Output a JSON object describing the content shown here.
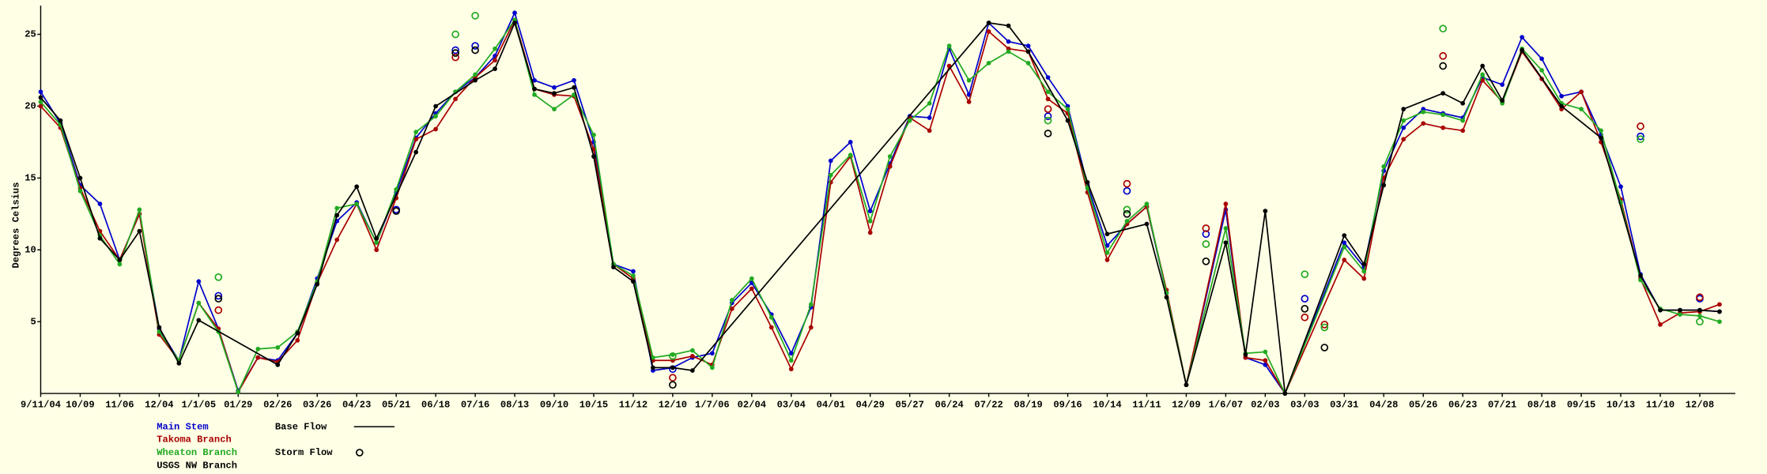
{
  "chart_data": {
    "type": "line",
    "y_label": "Degrees Celsius",
    "xlim": [
      0,
      85.8
    ],
    "ylim": [
      0,
      27
    ],
    "yticks": [
      5,
      10,
      15,
      20,
      25
    ],
    "xticks": [
      {
        "value": 0,
        "label": "9/11/04"
      },
      {
        "value": 2,
        "label": "10/09"
      },
      {
        "value": 4,
        "label": "11/06"
      },
      {
        "value": 6,
        "label": "12/04"
      },
      {
        "value": 8,
        "label": "1/1/05"
      },
      {
        "value": 10,
        "label": "01/29"
      },
      {
        "value": 12,
        "label": "02/26"
      },
      {
        "value": 14,
        "label": "03/26"
      },
      {
        "value": 16,
        "label": "04/23"
      },
      {
        "value": 18,
        "label": "05/21"
      },
      {
        "value": 20,
        "label": "06/18"
      },
      {
        "value": 22,
        "label": "07/16"
      },
      {
        "value": 24,
        "label": "08/13"
      },
      {
        "value": 26,
        "label": "09/10"
      },
      {
        "value": 28,
        "label": "10/15"
      },
      {
        "value": 30,
        "label": "11/12"
      },
      {
        "value": 32,
        "label": "12/10"
      },
      {
        "value": 34,
        "label": "1/7/06"
      },
      {
        "value": 36,
        "label": "02/04"
      },
      {
        "value": 38,
        "label": "03/04"
      },
      {
        "value": 40,
        "label": "04/01"
      },
      {
        "value": 42,
        "label": "04/29"
      },
      {
        "value": 44,
        "label": "05/27"
      },
      {
        "value": 46,
        "label": "06/24"
      },
      {
        "value": 48,
        "label": "07/22"
      },
      {
        "value": 50,
        "label": "08/19"
      },
      {
        "value": 52,
        "label": "09/16"
      },
      {
        "value": 54,
        "label": "10/14"
      },
      {
        "value": 56,
        "label": "11/11"
      },
      {
        "value": 58,
        "label": "12/09"
      },
      {
        "value": 60,
        "label": "1/6/07"
      },
      {
        "value": 62,
        "label": "02/03"
      },
      {
        "value": 64,
        "label": "03/03"
      },
      {
        "value": 66,
        "label": "03/31"
      },
      {
        "value": 68,
        "label": "04/28"
      },
      {
        "value": 70,
        "label": "05/26"
      },
      {
        "value": 72,
        "label": "06/23"
      },
      {
        "value": 74,
        "label": "07/21"
      },
      {
        "value": 76,
        "label": "08/18"
      },
      {
        "value": 78,
        "label": "09/15"
      },
      {
        "value": 80,
        "label": "10/13"
      },
      {
        "value": 82,
        "label": "11/10"
      },
      {
        "value": 84,
        "label": "12/08"
      }
    ],
    "line_legend": "Base Flow",
    "marker_legend": "Storm Flow",
    "series": [
      {
        "name": "Main Stem",
        "color": "#0000cc",
        "x": [
          0,
          1,
          2,
          3,
          4,
          5,
          6,
          7,
          8,
          9,
          10,
          11,
          12,
          13,
          14,
          15,
          16,
          17,
          18,
          19,
          20,
          21,
          22,
          23,
          24,
          25,
          26,
          27,
          28,
          29,
          30,
          31,
          32,
          33,
          34,
          35,
          36,
          37,
          38,
          39,
          40,
          41,
          42,
          43,
          44,
          45,
          46,
          47,
          48,
          49,
          50,
          51,
          52,
          53,
          54,
          55,
          56,
          57,
          58,
          60,
          61,
          62,
          63,
          66,
          67,
          68,
          69,
          70,
          71,
          72,
          73,
          74,
          75,
          76,
          77,
          78,
          79,
          80,
          81,
          82,
          83,
          84,
          85
        ],
        "values": [
          21,
          18.8,
          14.5,
          13.2,
          9.3,
          12.5,
          4.5,
          2.3,
          7.8,
          4.5,
          0.2,
          2.5,
          2.3,
          4.2,
          8,
          12,
          13.3,
          10.5,
          14,
          17.8,
          19.5,
          21,
          22,
          23.5,
          26.5,
          21.8,
          21.3,
          21.8,
          17.5,
          9,
          8.5,
          1.6,
          1.8,
          2.5,
          2.8,
          6.3,
          7.7,
          5.5,
          2.8,
          6,
          16.2,
          17.5,
          12.7,
          16,
          19.3,
          19.2,
          24,
          20.8,
          25.8,
          24.5,
          24.2,
          22,
          20,
          14.5,
          10.3,
          11.8,
          13,
          7,
          0.6,
          12.8,
          2.5,
          2,
          0,
          10.5,
          8.8,
          15.5,
          18.5,
          19.8,
          19.5,
          19.2,
          22,
          21.5,
          24.8,
          23.3,
          20.7,
          21,
          18,
          14.4,
          8.3,
          5.8,
          5.8,
          5.8,
          5.7
        ],
        "storm_x": [
          9,
          18,
          21,
          22,
          32,
          51,
          55,
          59,
          64,
          81,
          84
        ],
        "storm_values": [
          6.8,
          12.8,
          23.9,
          24.2,
          1.7,
          19.3,
          14.1,
          11.1,
          6.6,
          17.9,
          6.6
        ]
      },
      {
        "name": "Takoma Branch",
        "color": "#aa0000",
        "x": [
          0,
          1,
          2,
          3,
          4,
          5,
          6,
          7,
          8,
          9,
          10,
          11,
          12,
          13,
          14,
          15,
          16,
          17,
          18,
          19,
          20,
          21,
          22,
          23,
          24,
          25,
          26,
          27,
          28,
          29,
          30,
          31,
          32,
          33,
          34,
          35,
          36,
          37,
          38,
          39,
          40,
          41,
          42,
          43,
          44,
          45,
          46,
          47,
          48,
          49,
          50,
          51,
          52,
          53,
          54,
          55,
          56,
          57,
          58,
          60,
          61,
          62,
          63,
          66,
          67,
          68,
          69,
          70,
          71,
          72,
          73,
          74,
          75,
          76,
          77,
          78,
          79,
          80,
          81,
          82,
          83,
          84,
          85
        ],
        "values": [
          20,
          18.5,
          14.3,
          11.3,
          9.3,
          12.5,
          4.1,
          2.3,
          6.3,
          4.5,
          0.1,
          2.5,
          2.2,
          3.7,
          7.7,
          10.7,
          13.2,
          10,
          13.6,
          17.7,
          18.4,
          20.5,
          22,
          23.2,
          26,
          21.2,
          20.8,
          20.7,
          17,
          9,
          8,
          2.3,
          2.3,
          2.6,
          2,
          5.9,
          7.3,
          4.6,
          1.7,
          4.6,
          14.7,
          16.5,
          11.2,
          15.8,
          19.2,
          18.3,
          22.8,
          20.3,
          25.2,
          24,
          23.8,
          20.5,
          19.5,
          14,
          9.3,
          11.8,
          13,
          7.2,
          0.6,
          13.2,
          2.5,
          2.3,
          0,
          9.3,
          8,
          15,
          17.7,
          18.8,
          18.5,
          18.3,
          21.8,
          20.3,
          23.8,
          21.9,
          19.8,
          21,
          17.5,
          13.5,
          8,
          4.8,
          5.6,
          5.7,
          6.2
        ],
        "storm_x": [
          9,
          21,
          32,
          51,
          55,
          59,
          64,
          65,
          71,
          81,
          84
        ],
        "storm_values": [
          5.8,
          23.4,
          1.1,
          19.8,
          14.6,
          11.5,
          5.3,
          4.8,
          23.5,
          18.6,
          6.7
        ]
      },
      {
        "name": "Wheaton Branch",
        "color": "#22aa22",
        "x": [
          0,
          1,
          2,
          3,
          4,
          5,
          6,
          7,
          8,
          9,
          10,
          11,
          12,
          13,
          14,
          15,
          16,
          17,
          18,
          19,
          20,
          21,
          22,
          23,
          24,
          25,
          26,
          27,
          28,
          29,
          30,
          31,
          32,
          33,
          34,
          35,
          36,
          37,
          38,
          39,
          40,
          41,
          42,
          43,
          44,
          45,
          46,
          47,
          48,
          49,
          50,
          51,
          52,
          53,
          54,
          55,
          56,
          57,
          58,
          60,
          61,
          62,
          63,
          66,
          67,
          68,
          69,
          70,
          71,
          72,
          73,
          74,
          75,
          76,
          77,
          78,
          79,
          80,
          81,
          82,
          83,
          84,
          85
        ],
        "values": [
          20.3,
          18.7,
          14.1,
          11,
          9,
          12.8,
          4.3,
          2.3,
          6.3,
          4.3,
          0.1,
          3.1,
          3.2,
          4.3,
          7.8,
          12.9,
          13.2,
          10.5,
          14.2,
          18.2,
          19.3,
          21,
          22.2,
          24,
          26,
          20.8,
          19.8,
          20.8,
          18,
          9,
          8.2,
          2.5,
          2.7,
          3,
          1.8,
          6.5,
          8,
          5.3,
          2.3,
          6.2,
          15.2,
          16.6,
          12,
          16.5,
          19,
          20.2,
          24.2,
          21.8,
          23,
          23.8,
          23,
          21,
          19.8,
          14.3,
          9.8,
          12,
          13.2,
          7,
          0.6,
          11.5,
          2.8,
          2.9,
          0,
          10.2,
          8.5,
          15.8,
          19,
          19.6,
          19.4,
          19,
          22.2,
          20.2,
          24,
          22.5,
          20.2,
          19.8,
          18.3,
          13.3,
          7.9,
          5.9,
          5.5,
          5.4,
          5
        ],
        "storm_x": [
          9,
          21,
          22,
          32,
          51,
          55,
          59,
          64,
          65,
          71,
          81,
          84
        ],
        "storm_values": [
          8.1,
          25,
          26.3,
          2.6,
          19,
          12.8,
          10.4,
          8.3,
          4.6,
          25.4,
          17.7,
          5
        ]
      },
      {
        "name": "USGS NW Branch",
        "color": "#000000",
        "x": [
          0,
          1,
          2,
          3,
          4,
          5,
          6,
          7,
          8,
          12,
          13,
          14,
          15,
          16,
          17,
          19,
          20,
          22,
          23,
          24,
          25,
          26,
          27,
          28,
          29,
          30,
          31,
          32,
          33,
          48,
          49,
          50,
          52,
          53,
          54,
          56,
          57,
          58,
          60,
          61,
          62,
          63,
          66,
          67,
          68,
          69,
          71,
          72,
          73,
          74,
          75,
          77,
          79,
          81,
          82,
          83,
          84,
          85
        ],
        "values": [
          20.6,
          19,
          15,
          10.8,
          9.3,
          11.3,
          4.6,
          2.1,
          5.1,
          2,
          4.2,
          7.6,
          12.4,
          14.4,
          10.8,
          16.8,
          20,
          21.8,
          22.6,
          25.8,
          21.2,
          20.9,
          21.3,
          16.5,
          8.8,
          7.8,
          1.8,
          1.8,
          1.6,
          25.8,
          25.6,
          23.8,
          19,
          14.7,
          11.1,
          11.8,
          6.7,
          0.6,
          10.5,
          2.7,
          12.7,
          0,
          11,
          9,
          14.5,
          19.8,
          20.9,
          20.2,
          22.8,
          20.4,
          23.9,
          20,
          17.8,
          8.2,
          5.8,
          5.8,
          5.8,
          5.7
        ],
        "storm_x": [
          9,
          18,
          21,
          22,
          32,
          51,
          55,
          59,
          64,
          65,
          71
        ],
        "storm_values": [
          6.6,
          12.7,
          23.7,
          23.9,
          0.6,
          18.1,
          12.5,
          9.2,
          5.9,
          3.2,
          22.8
        ]
      }
    ]
  }
}
